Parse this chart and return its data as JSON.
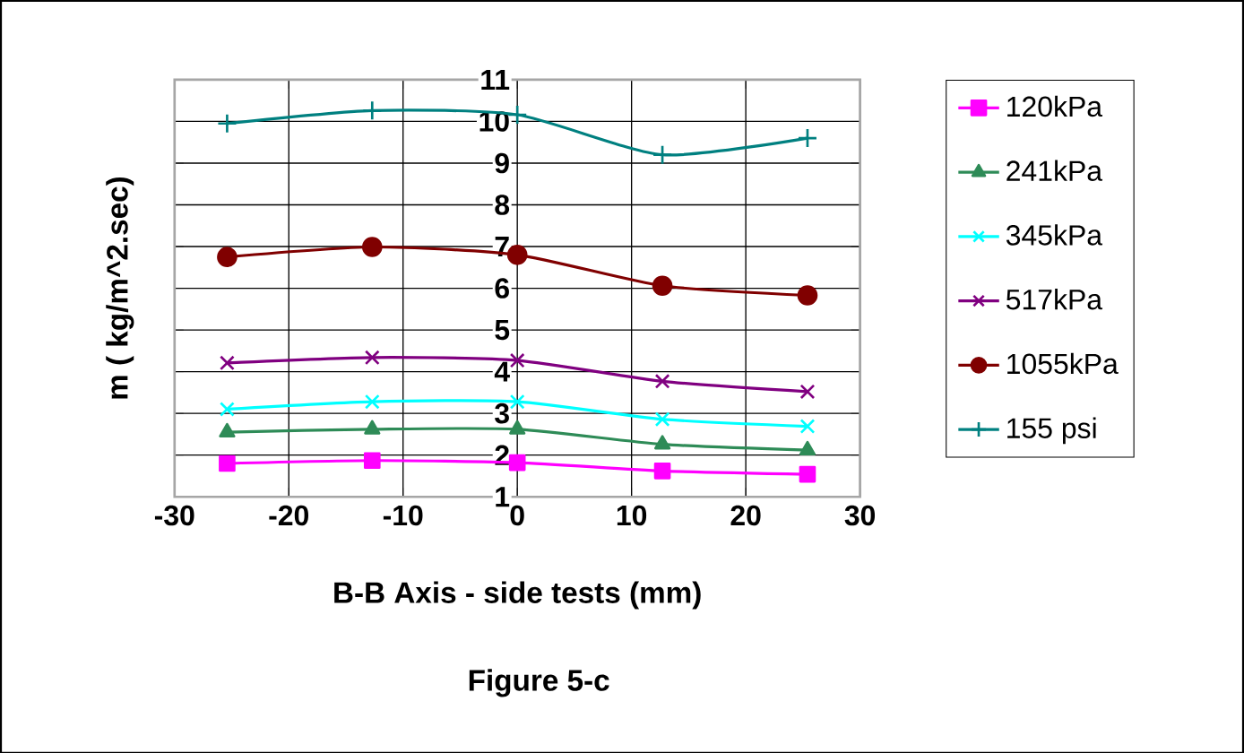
{
  "chart_data": {
    "type": "line",
    "xlabel": "B-B Axis - side tests (mm)",
    "ylabel": "m ( kg/m^2.sec)",
    "annotations": [
      "Figure 5-c"
    ],
    "x": [
      -25.4,
      -12.7,
      0,
      12.7,
      25.4
    ],
    "series": [
      {
        "name": "120kPa",
        "color": "#ff00ff",
        "marker": "square",
        "values": [
          1.8,
          1.87,
          1.82,
          1.62,
          1.54
        ]
      },
      {
        "name": "241kPa",
        "color": "#2e8b57",
        "marker": "triangle",
        "values": [
          2.55,
          2.62,
          2.62,
          2.26,
          2.12
        ]
      },
      {
        "name": "345kPa",
        "color": "#00ffff",
        "marker": "cross",
        "values": [
          3.1,
          3.28,
          3.28,
          2.86,
          2.69
        ]
      },
      {
        "name": "517kPa",
        "color": "#800080",
        "marker": "cross",
        "values": [
          4.21,
          4.34,
          4.27,
          3.77,
          3.52
        ]
      },
      {
        "name": "1055kPa",
        "color": "#800000",
        "marker": "circle",
        "values": [
          6.75,
          6.99,
          6.8,
          6.06,
          5.83
        ]
      },
      {
        "name": "155 psi",
        "color": "#008080",
        "marker": "plus",
        "values": [
          9.95,
          10.26,
          10.16,
          9.2,
          9.6
        ]
      }
    ],
    "xlim": [
      -30,
      30
    ],
    "ylim": [
      1,
      11
    ],
    "xticks": [
      -30,
      -20,
      -10,
      0,
      10,
      20,
      30
    ],
    "yticks": [
      1,
      2,
      3,
      4,
      5,
      6,
      7,
      8,
      9,
      10,
      11
    ],
    "grid": true,
    "legend": "right",
    "line_style": "solid"
  }
}
